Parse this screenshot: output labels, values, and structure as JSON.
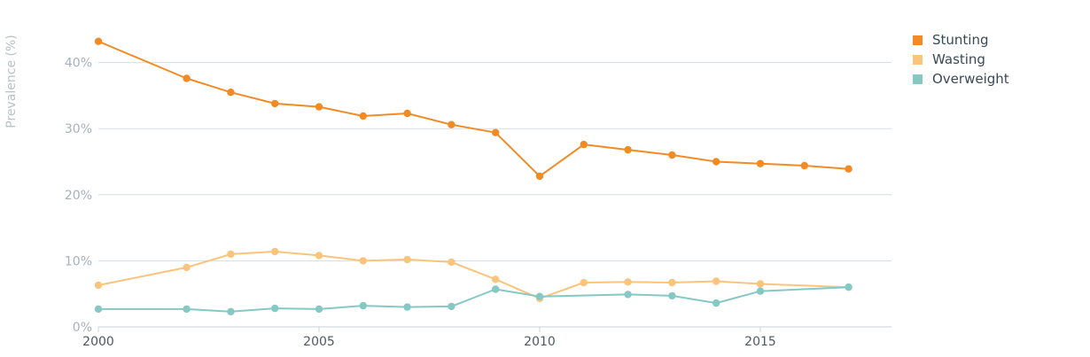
{
  "chart_data": {
    "type": "line",
    "title": "",
    "xlabel": "",
    "ylabel": "Prevalence (%)",
    "xlim": [
      2000,
      2018
    ],
    "ylim": [
      0,
      45
    ],
    "grid": true,
    "legend_position": "top-right",
    "x_ticks": [
      "2000",
      "2005",
      "2010",
      "2015"
    ],
    "y_ticks": [
      "0%",
      "10%",
      "20%",
      "30%",
      "40%"
    ],
    "colors": {
      "grid": "#d6dee3",
      "axis": "#c9d1d6",
      "tick_text": "#a6b2bb",
      "ylabel_text": "#b7c2c9"
    },
    "series": [
      {
        "name": "Stunting",
        "color": "#f28b24",
        "points": [
          [
            2000,
            43.2
          ],
          [
            2002,
            37.6
          ],
          [
            2003,
            35.5
          ],
          [
            2004,
            33.8
          ],
          [
            2005,
            33.3
          ],
          [
            2006,
            31.9
          ],
          [
            2007,
            32.3
          ],
          [
            2008,
            30.6
          ],
          [
            2009,
            29.4
          ],
          [
            2010,
            22.8
          ],
          [
            2011,
            27.6
          ],
          [
            2012,
            26.8
          ],
          [
            2013,
            26.0
          ],
          [
            2014,
            25.0
          ],
          [
            2015,
            24.7
          ],
          [
            2016,
            24.4
          ],
          [
            2017,
            23.9
          ]
        ]
      },
      {
        "name": "Wasting",
        "color": "#fbc47c",
        "points": [
          [
            2000,
            6.3
          ],
          [
            2002,
            9.0
          ],
          [
            2003,
            11.0
          ],
          [
            2004,
            11.4
          ],
          [
            2005,
            10.8
          ],
          [
            2006,
            10.0
          ],
          [
            2007,
            10.2
          ],
          [
            2008,
            9.8
          ],
          [
            2009,
            7.2
          ],
          [
            2010,
            4.3
          ],
          [
            2011,
            6.7
          ],
          [
            2012,
            6.8
          ],
          [
            2013,
            6.7
          ],
          [
            2014,
            6.9
          ],
          [
            2015,
            6.5
          ],
          [
            2017,
            6.0
          ]
        ]
      },
      {
        "name": "Overweight",
        "color": "#85c8c4",
        "points": [
          [
            2000,
            2.7
          ],
          [
            2002,
            2.7
          ],
          [
            2003,
            2.3
          ],
          [
            2004,
            2.8
          ],
          [
            2005,
            2.7
          ],
          [
            2006,
            3.2
          ],
          [
            2007,
            3.0
          ],
          [
            2008,
            3.1
          ],
          [
            2009,
            5.7
          ],
          [
            2010,
            4.6
          ],
          [
            2012,
            4.9
          ],
          [
            2013,
            4.7
          ],
          [
            2014,
            3.6
          ],
          [
            2015,
            5.4
          ],
          [
            2017,
            6.0
          ]
        ]
      }
    ]
  }
}
